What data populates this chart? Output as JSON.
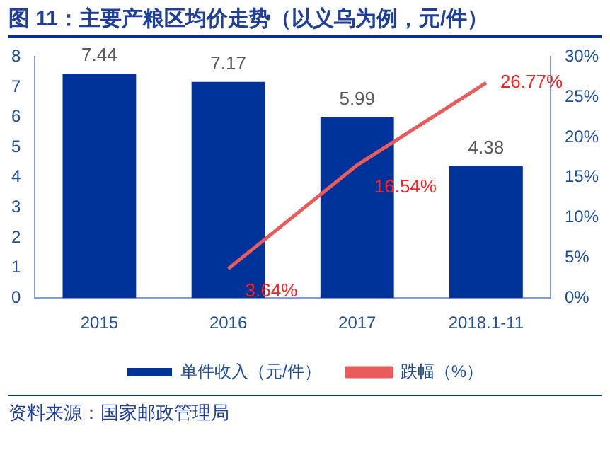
{
  "chart_data": {
    "type": "bar",
    "title": "图 11：主要产粮区均价走势（以义乌为例，元/件）",
    "categories": [
      "2015",
      "2016",
      "2017",
      "2018.1-11"
    ],
    "series": [
      {
        "name": "单件收入（元/件）",
        "color": "#003399",
        "values": [
          7.44,
          7.17,
          5.99,
          4.38
        ],
        "value_labels": [
          "7.44",
          "7.17",
          "5.99",
          "4.38"
        ]
      },
      {
        "name": "跌幅（%）",
        "type": "line",
        "axis": "y2",
        "color": "#e85c5c",
        "values": [
          null,
          3.64,
          16.54,
          26.77
        ],
        "value_labels": [
          null,
          "3.64%",
          "16.54%",
          "26.77%"
        ]
      }
    ],
    "ylim": [
      0,
      8
    ],
    "yticks": [
      0,
      1,
      2,
      3,
      4,
      5,
      6,
      7,
      8
    ],
    "y2lim": [
      0,
      30
    ],
    "y2ticks": [
      {
        "value": 0,
        "label": "0%"
      },
      {
        "value": 5,
        "label": "5%"
      },
      {
        "value": 10,
        "label": "10%"
      },
      {
        "value": 15,
        "label": "15%"
      },
      {
        "value": 20,
        "label": "20%"
      },
      {
        "value": 25,
        "label": "25%"
      },
      {
        "value": 30,
        "label": "30%"
      }
    ],
    "grid": false,
    "legend": "bottom",
    "marker": "none",
    "line_style": "solid",
    "annotations": [
      "资料来源：国家邮政管理局"
    ]
  }
}
